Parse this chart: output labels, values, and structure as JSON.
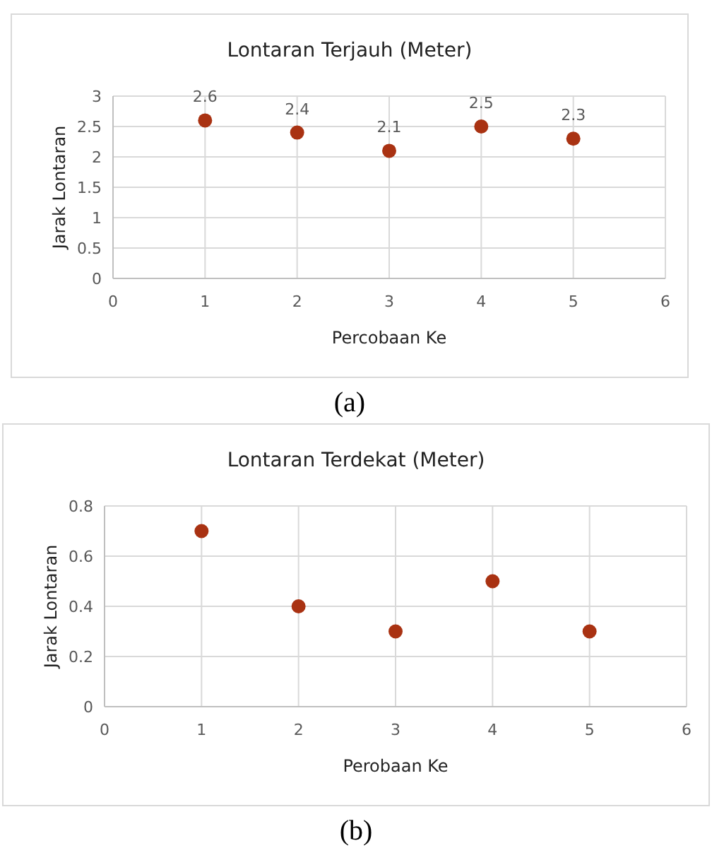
{
  "chart_data": [
    {
      "type": "scatter",
      "title": "Lontaran Terjauh (Meter)",
      "xlabel": "Percobaan Ke",
      "ylabel": "Jarak Lontaran",
      "x": [
        1,
        2,
        3,
        4,
        5
      ],
      "series": [
        {
          "color": "#a93212",
          "values": [
            2.6,
            2.4,
            2.1,
            2.5,
            2.3
          ]
        }
      ],
      "xlim": [
        0,
        6
      ],
      "xticks": [
        0,
        1,
        2,
        3,
        4,
        5,
        6
      ],
      "ylim": [
        0,
        3
      ],
      "yticks": [
        0,
        0.5,
        1,
        1.5,
        2,
        2.5,
        3
      ],
      "grid": true,
      "marker": "circle",
      "data_labels": true,
      "annotations": [
        "(a)"
      ]
    },
    {
      "type": "scatter",
      "title": "Lontaran Terdekat (Meter)",
      "xlabel": "Perobaan Ke",
      "ylabel": "Jarak Lontaran",
      "x": [
        1,
        2,
        3,
        4,
        5
      ],
      "series": [
        {
          "color": "#a93212",
          "values": [
            0.7,
            0.4,
            0.3,
            0.5,
            0.3
          ]
        }
      ],
      "xlim": [
        0,
        6
      ],
      "xticks": [
        0,
        1,
        2,
        3,
        4,
        5,
        6
      ],
      "ylim": [
        0,
        0.8
      ],
      "yticks": [
        0,
        0.2,
        0.4,
        0.6,
        0.8
      ],
      "grid": true,
      "marker": "circle",
      "annotations": [
        "(b)"
      ]
    }
  ]
}
